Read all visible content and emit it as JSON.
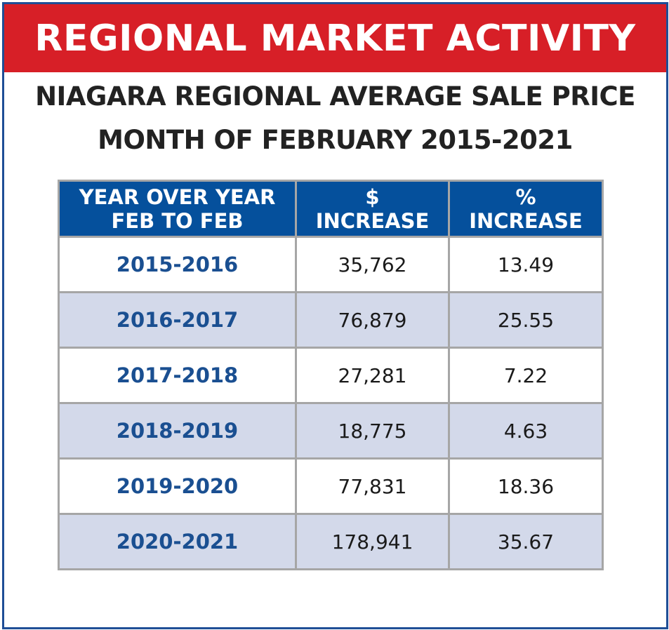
{
  "banner": {
    "title": "REGIONAL MARKET ACTIVITY"
  },
  "subtitle": {
    "line1": "NIAGARA REGIONAL AVERAGE SALE PRICE",
    "line2": "MONTH OF FEBRUARY 2015-2021"
  },
  "table": {
    "headers": [
      {
        "line1": "YEAR OVER YEAR",
        "line2": "FEB TO FEB"
      },
      {
        "line1": "$",
        "line2": "INCREASE"
      },
      {
        "line1": "%",
        "line2": "INCREASE"
      }
    ],
    "rows": [
      {
        "period": "2015-2016",
        "dollar": "35,762",
        "percent": "13.49"
      },
      {
        "period": "2016-2017",
        "dollar": "76,879",
        "percent": "25.55"
      },
      {
        "period": "2017-2018",
        "dollar": "27,281",
        "percent": "7.22"
      },
      {
        "period": "2018-2019",
        "dollar": "18,775",
        "percent": "4.63"
      },
      {
        "period": "2019-2020",
        "dollar": "77,831",
        "percent": "18.36"
      },
      {
        "period": "2020-2021",
        "dollar": "178,941",
        "percent": "35.67"
      }
    ]
  },
  "colors": {
    "banner_red": "#d71f27",
    "header_blue": "#05509c",
    "period_text_blue": "#1a4f91",
    "alt_row_bg": "#d3d9ea",
    "border_grey": "#a6a6a6",
    "frame_blue": "#1f4e96"
  }
}
